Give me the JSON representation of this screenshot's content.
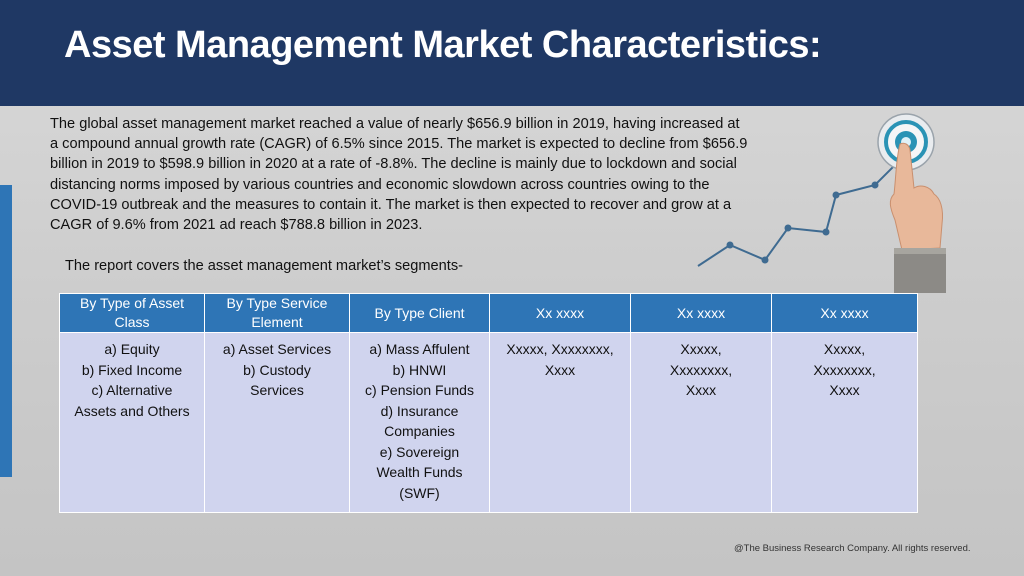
{
  "header": {
    "title": "Asset Management Market Characteristics:"
  },
  "body": {
    "paragraph": "The global asset management market reached a value of nearly $656.9 billion in 2019, having increased at a compound annual growth rate (CAGR) of 6.5% since 2015. The market is expected to decline from $656.9 billion in 2019 to $598.9 billion in 2020 at a rate of -8.8%. The decline is mainly due to lockdown and social distancing norms imposed by various countries and economic slowdown across countries owing to the COVID-19 outbreak and the measures to contain it. The market is then expected to recover and grow at a CAGR of 9.6% from 2021 ad reach $788.8 billion in 2023.",
    "segments_note": "The report covers the asset management market’s segments-"
  },
  "table": {
    "headers": [
      "By Type of Asset Class",
      "By Type Service Element",
      "By Type Client",
      "Xx xxxx",
      "Xx xxxx",
      "Xx xxxx"
    ],
    "cells": [
      [
        "a) Equity",
        "b) Fixed Income",
        "c) Alternative",
        "Assets and Others"
      ],
      [
        "a) Asset Services",
        "b) Custody",
        "Services"
      ],
      [
        "a) Mass Affulent",
        "b) HNWI",
        "c) Pension Funds",
        "d) Insurance",
        "Companies",
        "e) Sovereign",
        "Wealth Funds",
        "(SWF)"
      ],
      [
        "Xxxxx, Xxxxxxxx,",
        "Xxxx"
      ],
      [
        "Xxxxx,",
        "Xxxxxxxx,",
        "Xxxx"
      ],
      [
        "Xxxxx,",
        "Xxxxxxxx,",
        "Xxxx"
      ]
    ]
  },
  "illustration": {
    "icon": "target-growth-chart-icon",
    "colors": {
      "line": "#3f6b91",
      "target_ring": "#2a93b5",
      "hand": "#e8b89a"
    }
  },
  "footer": {
    "copyright": "@The Business Research Company. All rights reserved."
  },
  "colors": {
    "header_bg": "#1f3864",
    "table_header_bg": "#2e75b6",
    "table_cell_bg": "#d0d4ee",
    "accent_bar": "#2e75b6"
  }
}
